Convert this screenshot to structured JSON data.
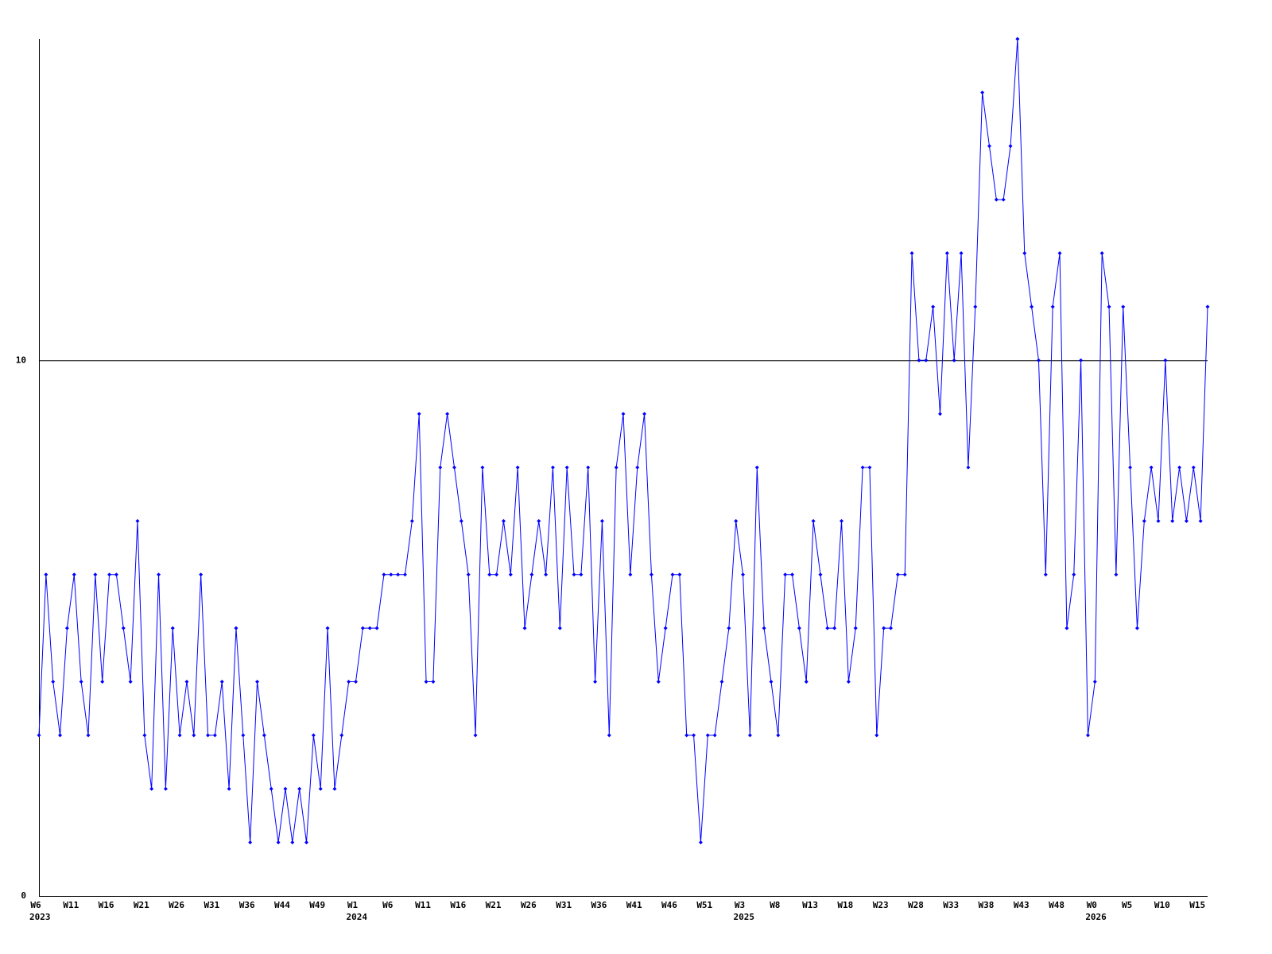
{
  "chart_data": {
    "type": "line",
    "categories": [
      "W6",
      null,
      null,
      null,
      null,
      "W11",
      null,
      null,
      null,
      null,
      "W16",
      null,
      null,
      null,
      null,
      "W21",
      null,
      null,
      null,
      null,
      "W26",
      null,
      null,
      null,
      null,
      "W31",
      null,
      null,
      null,
      null,
      "W36",
      null,
      null,
      null,
      null,
      "W44",
      null,
      null,
      null,
      null,
      "W49",
      null,
      null,
      null,
      null,
      "W1",
      null,
      null,
      null,
      null,
      "W6",
      null,
      null,
      null,
      null,
      "W11",
      null,
      null,
      null,
      null,
      "W16",
      null,
      null,
      null,
      null,
      "W21",
      null,
      null,
      null,
      null,
      "W26",
      null,
      null,
      null,
      null,
      "W31",
      null,
      null,
      null,
      null,
      "W36",
      null,
      null,
      null,
      null,
      "W41",
      null,
      null,
      null,
      null,
      "W46",
      null,
      null,
      null,
      null,
      "W51",
      null,
      null,
      null,
      null,
      "W3",
      null,
      null,
      null,
      null,
      "W8",
      null,
      null,
      null,
      null,
      "W13",
      null,
      null,
      null,
      null,
      "W18",
      null,
      null,
      null,
      null,
      "W23",
      null,
      null,
      null,
      null,
      "W28",
      null,
      null,
      null,
      null,
      "W33",
      null,
      null,
      null,
      null,
      "W38",
      null,
      null,
      null,
      null,
      "W43",
      null,
      null,
      null,
      null,
      "W48",
      null,
      null,
      null,
      null,
      "W0",
      null,
      null,
      null,
      null,
      "W5",
      null,
      null,
      null,
      null,
      "W10",
      null,
      null,
      null,
      null,
      "W15",
      null
    ],
    "years": [
      "2023",
      null,
      null,
      null,
      null,
      null,
      null,
      null,
      null,
      null,
      null,
      null,
      null,
      null,
      null,
      null,
      null,
      null,
      null,
      null,
      null,
      null,
      null,
      null,
      null,
      null,
      null,
      null,
      null,
      null,
      null,
      null,
      null,
      null,
      null,
      null,
      null,
      null,
      null,
      null,
      null,
      null,
      null,
      null,
      null,
      "2024",
      null,
      null,
      null,
      null,
      null,
      null,
      null,
      null,
      null,
      null,
      null,
      null,
      null,
      null,
      null,
      null,
      null,
      null,
      null,
      null,
      null,
      null,
      null,
      null,
      null,
      null,
      null,
      null,
      null,
      null,
      null,
      null,
      null,
      null,
      null,
      null,
      null,
      null,
      null,
      null,
      null,
      null,
      null,
      null,
      null,
      null,
      null,
      null,
      null,
      null,
      null,
      null,
      null,
      null,
      "2025",
      null,
      null,
      null,
      null,
      null,
      null,
      null,
      null,
      null,
      null,
      null,
      null,
      null,
      null,
      null,
      null,
      null,
      null,
      null,
      null,
      null,
      null,
      null,
      null,
      null,
      null,
      null,
      null,
      null,
      null,
      null,
      null,
      null,
      null,
      null,
      null,
      null,
      null,
      null,
      null,
      null,
      null,
      null,
      null,
      null,
      null,
      null,
      null,
      null,
      "2026",
      null,
      null,
      null,
      null,
      null,
      null,
      null,
      null,
      null,
      null,
      null,
      null,
      null,
      null,
      null,
      null
    ],
    "series": [
      {
        "color": "#0000ff",
        "values": [
          3,
          6,
          4,
          3,
          5,
          6,
          4,
          3,
          6,
          4,
          6,
          6,
          5,
          4,
          7,
          3,
          2,
          6,
          2,
          5,
          3,
          4,
          3,
          6,
          3,
          3,
          4,
          2,
          5,
          3,
          1,
          4,
          3,
          2,
          1,
          2,
          1,
          2,
          1,
          3,
          2,
          5,
          2,
          3,
          4,
          4,
          5,
          5,
          5,
          6,
          6,
          6,
          6,
          7,
          9,
          4,
          4,
          8,
          9,
          8,
          7,
          6,
          3,
          8,
          6,
          6,
          7,
          6,
          8,
          5,
          6,
          7,
          6,
          8,
          5,
          8,
          6,
          6,
          8,
          4,
          7,
          3,
          8,
          9,
          6,
          8,
          9,
          6,
          4,
          5,
          6,
          6,
          3,
          3,
          1,
          3,
          3,
          4,
          5,
          7,
          6,
          3,
          8,
          5,
          4,
          3,
          6,
          6,
          5,
          4,
          7,
          6,
          5,
          5,
          7,
          4,
          5,
          8,
          8,
          3,
          5,
          5,
          6,
          6,
          12,
          10,
          10,
          11,
          9,
          12,
          10,
          12,
          8,
          11,
          15,
          14,
          13,
          13,
          14,
          16,
          12,
          11,
          10,
          6,
          11,
          12,
          5,
          6,
          10,
          3,
          4,
          12,
          11,
          6,
          11,
          8,
          5,
          7,
          8,
          7,
          10,
          7,
          8,
          7,
          8,
          7,
          11
        ]
      }
    ],
    "ylim": [
      0,
      16
    ],
    "yticks": [
      0,
      10
    ],
    "grid": true
  }
}
